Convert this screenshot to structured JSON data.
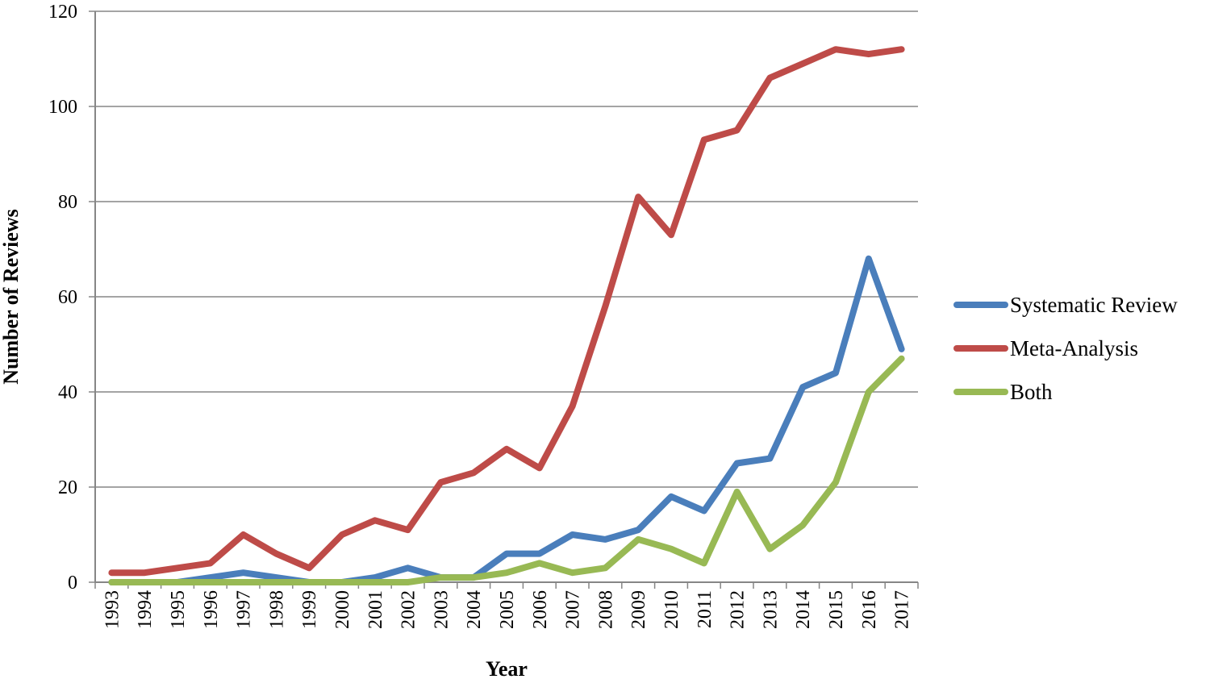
{
  "chart_data": {
    "type": "line",
    "title": "",
    "xlabel": "Year",
    "ylabel": "Number of Reviews",
    "ylim": [
      0,
      120
    ],
    "yticks": [
      0,
      20,
      40,
      60,
      80,
      100,
      120
    ],
    "grid": "horizontal",
    "legend_position": "right",
    "categories": [
      "1993",
      "1994",
      "1995",
      "1996",
      "1997",
      "1998",
      "1999",
      "2000",
      "2001",
      "2002",
      "2003",
      "2004",
      "2005",
      "2006",
      "2007",
      "2008",
      "2009",
      "2010",
      "2011",
      "2012",
      "2013",
      "2014",
      "2015",
      "2016",
      "2017"
    ],
    "series": [
      {
        "name": "Systematic Review",
        "color": "#4a7ebb",
        "values": [
          0,
          0,
          0,
          1,
          2,
          1,
          0,
          0,
          1,
          3,
          1,
          1,
          6,
          6,
          10,
          9,
          11,
          18,
          15,
          25,
          26,
          41,
          44,
          68,
          49
        ]
      },
      {
        "name": "Meta-Analysis",
        "color": "#be4b48",
        "values": [
          2,
          2,
          3,
          4,
          10,
          6,
          3,
          10,
          13,
          11,
          21,
          23,
          28,
          24,
          37,
          58,
          81,
          73,
          93,
          95,
          106,
          109,
          112,
          111,
          112
        ]
      },
      {
        "name": "Both",
        "color": "#98b954",
        "values": [
          0,
          0,
          0,
          0,
          0,
          0,
          0,
          0,
          0,
          0,
          1,
          1,
          2,
          4,
          2,
          3,
          9,
          7,
          4,
          19,
          7,
          12,
          21,
          40,
          47
        ]
      }
    ]
  }
}
